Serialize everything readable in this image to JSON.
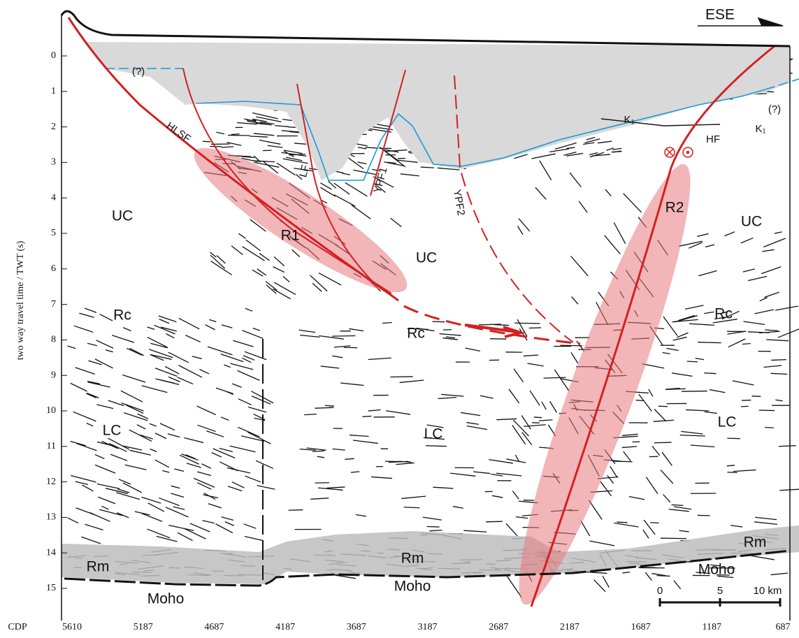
{
  "y_axis": {
    "label": "two way travel time / TWT (s)",
    "ticks": [
      "0",
      "1",
      "2",
      "3",
      "4",
      "5",
      "6",
      "7",
      "8",
      "9",
      "10",
      "11",
      "12",
      "13",
      "14",
      "15"
    ]
  },
  "x_axis": {
    "label": "CDP",
    "ticks": [
      "5610",
      "5187",
      "4687",
      "4187",
      "3687",
      "3187",
      "2687",
      "2187",
      "1687",
      "1187",
      "687"
    ]
  },
  "direction": "ESE",
  "labels": [
    "UC",
    "UC",
    "UC",
    "R1",
    "R2",
    "Rc",
    "Rc",
    "Rc",
    "LC",
    "LC",
    "LC",
    "Rm",
    "Rm",
    "Rm",
    "Moho",
    "Moho",
    "Moho"
  ],
  "fault_labels": [
    "HLSF",
    "LF",
    "YPF1",
    "YPF2",
    "HF",
    "K₁",
    "K₁",
    "(?)",
    "(?)"
  ],
  "scale_bar": [
    "0",
    "5",
    "10 km"
  ]
}
